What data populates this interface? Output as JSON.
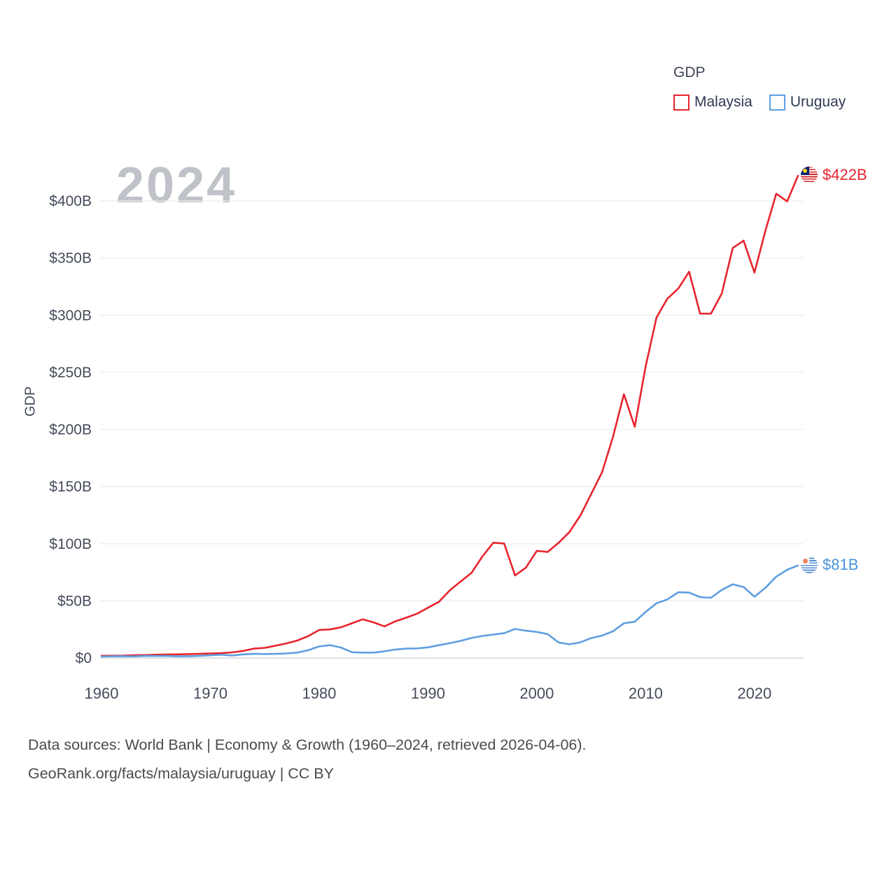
{
  "watermark": "2024",
  "legend": {
    "title": "GDP",
    "series": [
      {
        "label": "Malaysia",
        "color": "#e8242d"
      },
      {
        "label": "Uruguay",
        "color": "#5e9fe0"
      }
    ]
  },
  "end_labels": [
    {
      "series": "Malaysia",
      "text": "$422B",
      "flag": "malaysia-flag",
      "color": "#e8242d"
    },
    {
      "series": "Uruguay",
      "text": "$81B",
      "flag": "uruguay-flag",
      "color": "#4a94da"
    }
  ],
  "footer": {
    "line1": "Data sources: World Bank | Economy & Growth (1960–2024, retrieved 2026-04-06).",
    "line2": "GeoRank.org/facts/malaysia/uruguay | CC BY"
  },
  "chart_data": {
    "type": "line",
    "title": "",
    "xlabel": "",
    "ylabel": "GDP",
    "ylim": [
      0,
      430
    ],
    "grid": true,
    "legend_position": "top-right",
    "y_ticks": [
      0,
      50,
      100,
      150,
      200,
      250,
      300,
      350,
      400
    ],
    "y_tick_labels": [
      "$0",
      "$50B",
      "$100B",
      "$150B",
      "$200B",
      "$250B",
      "$300B",
      "$350B",
      "$400B"
    ],
    "x_ticks": [
      1960,
      1970,
      1980,
      1990,
      2000,
      2010,
      2020
    ],
    "x": [
      1960,
      1961,
      1962,
      1963,
      1964,
      1965,
      1966,
      1967,
      1968,
      1969,
      1970,
      1971,
      1972,
      1973,
      1974,
      1975,
      1976,
      1977,
      1978,
      1979,
      1980,
      1981,
      1982,
      1983,
      1984,
      1985,
      1986,
      1987,
      1988,
      1989,
      1990,
      1991,
      1992,
      1993,
      1994,
      1995,
      1996,
      1997,
      1998,
      1999,
      2000,
      2001,
      2002,
      2003,
      2004,
      2005,
      2006,
      2007,
      2008,
      2009,
      2010,
      2011,
      2012,
      2013,
      2014,
      2015,
      2016,
      2017,
      2018,
      2019,
      2020,
      2021,
      2022,
      2023,
      2024
    ],
    "series": [
      {
        "name": "Malaysia",
        "color": "#e8242d",
        "values": [
          1.9,
          2.0,
          2.1,
          2.4,
          2.6,
          2.9,
          3.1,
          3.2,
          3.4,
          3.7,
          3.9,
          4.2,
          4.9,
          6.2,
          8.2,
          8.9,
          10.8,
          12.8,
          15.3,
          19.1,
          24.5,
          25.0,
          26.8,
          30.3,
          33.9,
          31.2,
          27.7,
          32.1,
          35.3,
          38.8,
          44.0,
          49.1,
          59.2,
          66.9,
          74.5,
          88.8,
          100.9,
          100.2,
          72.2,
          79.1,
          93.8,
          92.8,
          100.8,
          110.2,
          124.7,
          143.5,
          162.7,
          193.5,
          230.8,
          202.3,
          255.0,
          298.0,
          314.4,
          323.3,
          338.1,
          301.4,
          301.3,
          319.1,
          358.8,
          365.2,
          337.3,
          373.8,
          406.3,
          399.6,
          422.0
        ]
      },
      {
        "name": "Uruguay",
        "color": "#5e9fe0",
        "values": [
          1.2,
          1.5,
          1.6,
          1.4,
          1.9,
          1.8,
          1.8,
          1.5,
          1.6,
          1.9,
          2.4,
          2.9,
          2.2,
          3.2,
          3.6,
          3.5,
          3.6,
          4.0,
          4.7,
          6.8,
          10.1,
          11.2,
          9.2,
          5.1,
          4.7,
          4.7,
          5.9,
          7.4,
          8.2,
          8.4,
          9.3,
          11.2,
          12.9,
          15.0,
          17.5,
          19.3,
          20.5,
          21.7,
          25.4,
          23.9,
          22.8,
          20.9,
          13.6,
          12.0,
          13.7,
          17.4,
          19.6,
          23.4,
          30.4,
          31.7,
          40.3,
          47.9,
          51.3,
          57.5,
          57.2,
          53.3,
          52.7,
          59.6,
          64.5,
          62.1,
          53.6,
          61.4,
          71.2,
          77.2,
          81.0
        ]
      }
    ]
  }
}
